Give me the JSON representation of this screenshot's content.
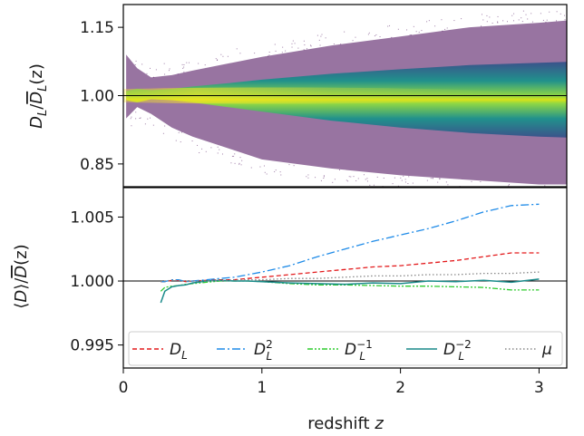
{
  "chart_data": [
    {
      "type": "heatmap",
      "xlim": [
        0,
        3.2
      ],
      "ylim": [
        0.8,
        1.2
      ],
      "y_ticks": [
        {
          "value": 0.85,
          "label": "0.85"
        },
        {
          "value": 1.0,
          "label": "1.00"
        },
        {
          "value": 1.15,
          "label": "1.15"
        }
      ],
      "ylabel": {
        "base": "D",
        "sub": "L",
        "slash": "/",
        "bar": "D",
        "sub2": "L",
        "tail": "(z)"
      },
      "reference_line": 1.0,
      "colormap": [
        "#440154",
        "#3b528b",
        "#21918c",
        "#5ec962",
        "#fde725"
      ],
      "density_envelope": {
        "x": [
          0.02,
          0.1,
          0.2,
          0.35,
          0.5,
          0.75,
          1.0,
          1.5,
          2.0,
          2.5,
          3.0,
          3.2
        ],
        "sparse_upper": [
          1.09,
          1.06,
          1.04,
          1.045,
          1.055,
          1.07,
          1.085,
          1.11,
          1.13,
          1.15,
          1.16,
          1.165
        ],
        "sparse_lower": [
          0.95,
          0.975,
          0.96,
          0.93,
          0.91,
          0.885,
          0.86,
          0.84,
          0.825,
          0.815,
          0.805,
          0.805
        ],
        "dense_upper": [
          1.01,
          1.015,
          1.012,
          1.015,
          1.02,
          1.027,
          1.035,
          1.048,
          1.058,
          1.067,
          1.072,
          1.074
        ],
        "dense_lower": [
          0.99,
          0.985,
          0.992,
          0.99,
          0.985,
          0.975,
          0.965,
          0.945,
          0.93,
          0.918,
          0.91,
          0.908
        ]
      }
    },
    {
      "type": "line",
      "xlim": [
        0,
        3.2
      ],
      "ylim": [
        0.9932,
        1.0073
      ],
      "x_ticks": [
        {
          "value": 0,
          "label": "0"
        },
        {
          "value": 1,
          "label": "1"
        },
        {
          "value": 2,
          "label": "2"
        },
        {
          "value": 3,
          "label": "3"
        }
      ],
      "y_ticks": [
        {
          "value": 0.995,
          "label": "0.995"
        },
        {
          "value": 1.0,
          "label": "1.000"
        },
        {
          "value": 1.005,
          "label": "1.005"
        }
      ],
      "xlabel": {
        "text": "redshift ",
        "var": "z"
      },
      "ylabel": {
        "open": "⟨",
        "var": "D",
        "close": "⟩/",
        "bar": "D",
        "tail": "(z)"
      },
      "reference_line": 1.0,
      "x": [
        0.27,
        0.3,
        0.35,
        0.4,
        0.45,
        0.5,
        0.6,
        0.7,
        0.8,
        0.9,
        1.0,
        1.2,
        1.4,
        1.6,
        1.8,
        2.0,
        2.2,
        2.4,
        2.6,
        2.8,
        3.0
      ],
      "series": [
        {
          "name": "D_L",
          "base": "D",
          "sub": "L",
          "sup": "",
          "color": "#e31a1c",
          "dash": "5,3",
          "values": [
            0.99995,
            0.99995,
            1.00005,
            1.00005,
            0.99995,
            1.0,
            1.00005,
            1.0001,
            1.0001,
            1.0002,
            1.0003,
            1.0005,
            1.0007,
            1.0009,
            1.0011,
            1.0012,
            1.0014,
            1.0016,
            1.0019,
            1.0022,
            1.0022
          ]
        },
        {
          "name": "D_L^2",
          "base": "D",
          "sub": "L",
          "sup": "2",
          "color": "#1f8be8",
          "dash": "9,3,2,3",
          "values": [
            0.99995,
            0.99995,
            1.0001,
            1.0001,
            0.99995,
            1.0,
            1.0001,
            1.0002,
            1.0003,
            1.0005,
            1.0007,
            1.0012,
            1.0019,
            1.0025,
            1.0031,
            1.0036,
            1.0041,
            1.0047,
            1.0054,
            1.0059,
            1.006
          ]
        },
        {
          "name": "D_L^-1",
          "base": "D",
          "sub": "L",
          "sup": "−1",
          "color": "#2ecc2e",
          "dash": "6,2,2,2,2,2",
          "values": [
            0.9992,
            0.9995,
            0.9996,
            0.99965,
            0.99975,
            0.9998,
            0.9999,
            1.0,
            1.0,
            1.0,
            0.99995,
            0.9998,
            0.9997,
            0.9997,
            0.99965,
            0.9996,
            0.9996,
            0.99955,
            0.9995,
            0.9993,
            0.9993
          ]
        },
        {
          "name": "D_L^-2",
          "base": "D",
          "sub": "L",
          "sup": "−2",
          "color": "#1a8a8a",
          "dash": "",
          "values": [
            0.9983,
            0.9992,
            0.99955,
            0.99965,
            0.9997,
            0.99985,
            1.0,
            1.00005,
            1.0,
            1.0,
            0.99995,
            0.99985,
            0.9998,
            0.99975,
            0.99985,
            0.9998,
            1.0,
            0.99995,
            1.00005,
            0.9999,
            1.00015
          ]
        },
        {
          "name": "μ",
          "base": "μ",
          "sub": "",
          "sup": "",
          "color": "#888888",
          "dash": "1.5,2.5",
          "values": [
            0.99995,
            1.0,
            1.00005,
            1.00005,
            1.0,
            1.0,
            1.0,
            1.00005,
            1.0001,
            1.0001,
            1.0001,
            1.0002,
            1.0002,
            1.0003,
            1.0004,
            1.0004,
            1.0005,
            1.0005,
            1.0006,
            1.0006,
            1.0007
          ]
        }
      ],
      "legend_position": "bottom"
    }
  ]
}
